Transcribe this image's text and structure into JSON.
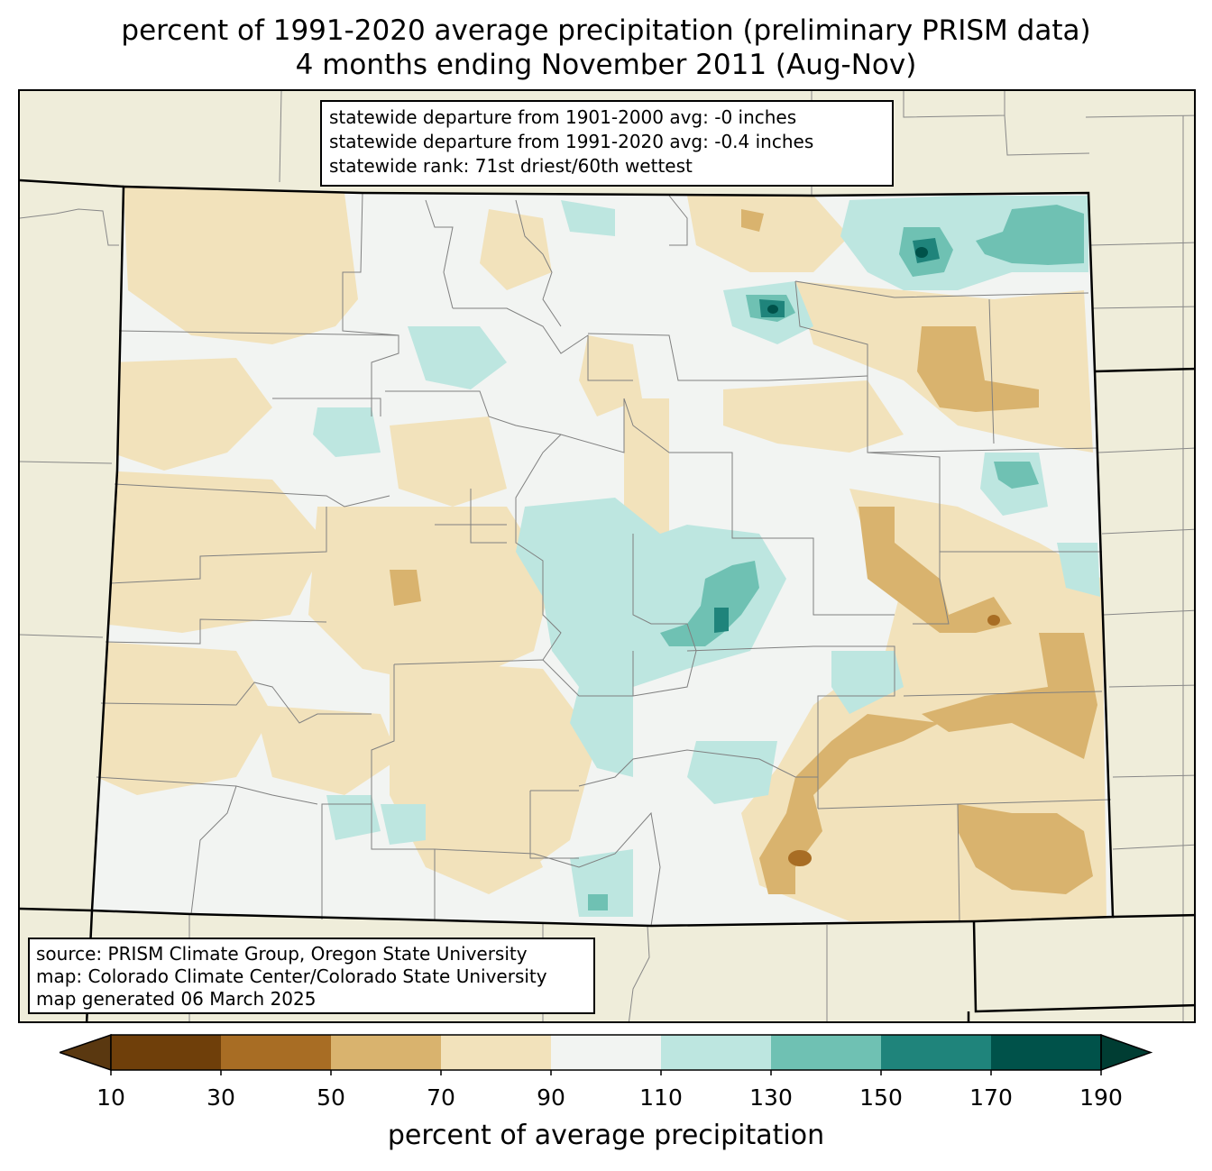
{
  "title": {
    "line1": "percent of 1991-2020 average precipitation (preliminary PRISM data)",
    "line2": "4 months ending November 2011 (Aug-Nov)"
  },
  "stats": {
    "line1": "statewide departure from 1901-2000 avg: -0 inches",
    "line2": "statewide departure from 1991-2020 avg: -0.4 inches",
    "line3": "statewide rank: 71st driest/60th wettest"
  },
  "source": {
    "line1": "source: PRISM Climate Group, Oregon State University",
    "line2": "map: Colorado Climate Center/Colorado State University",
    "line3": "map generated 06 March 2025"
  },
  "colorbar": {
    "label": "percent of average precipitation",
    "ticks": [
      "10",
      "30",
      "50",
      "70",
      "90",
      "110",
      "130",
      "150",
      "170",
      "190"
    ],
    "colors": [
      "#5a3810",
      "#6f3f0a",
      "#a86d24",
      "#d9b36e",
      "#f2e2bb",
      "#f2f4f2",
      "#bde6e0",
      "#6fc1b3",
      "#1f847b",
      "#00524a",
      "#003d33"
    ]
  },
  "map_colors": {
    "outside": "#efedda",
    "near_normal": "#f2f4f2",
    "dry_70_90": "#f2e2bb",
    "dry_50_70": "#d9b36e",
    "dry_30_50": "#a86d24",
    "wet_110_130": "#bde6e0",
    "wet_130_150": "#6fc1b3",
    "wet_150_170": "#1f847b",
    "wet_170_190": "#00524a"
  }
}
